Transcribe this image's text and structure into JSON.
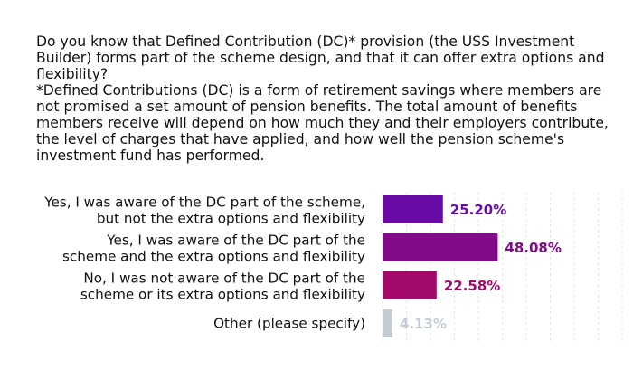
{
  "question": {
    "title": "Do you know that Defined Contribution (DC)* provision (the USS Investment Builder) forms part of the scheme design, and that it can offer extra options and flexibility?",
    "footnote": "*Defined Contributions (DC) is a form of retirement savings where members are not promised a set amount of pension benefits. The total amount of benefits members receive will depend on how much they and their employers contribute, the level of charges that have applied, and how well the pension scheme's investment fund has performed."
  },
  "chart_data": {
    "type": "bar",
    "orientation": "horizontal",
    "unit": "%",
    "xlim": [
      0,
      100
    ],
    "grid": true,
    "categories": [
      [
        "Yes, I was aware of the DC part of the scheme,",
        "but not the extra options and flexibility"
      ],
      [
        "Yes, I was aware of the DC part of the",
        "scheme and the extra options and flexibility"
      ],
      [
        "No, I was not aware of the DC part of the",
        "scheme or its extra options and flexibility"
      ],
      [
        "Other (please specify)"
      ]
    ],
    "values": [
      25.2,
      48.08,
      22.58,
      4.13
    ],
    "value_labels": [
      "25.20%",
      "48.08%",
      "22.58%",
      "4.13%"
    ],
    "colors": [
      "#6a0ba8",
      "#820b8a",
      "#a3096a",
      "#c3ccd3"
    ]
  }
}
